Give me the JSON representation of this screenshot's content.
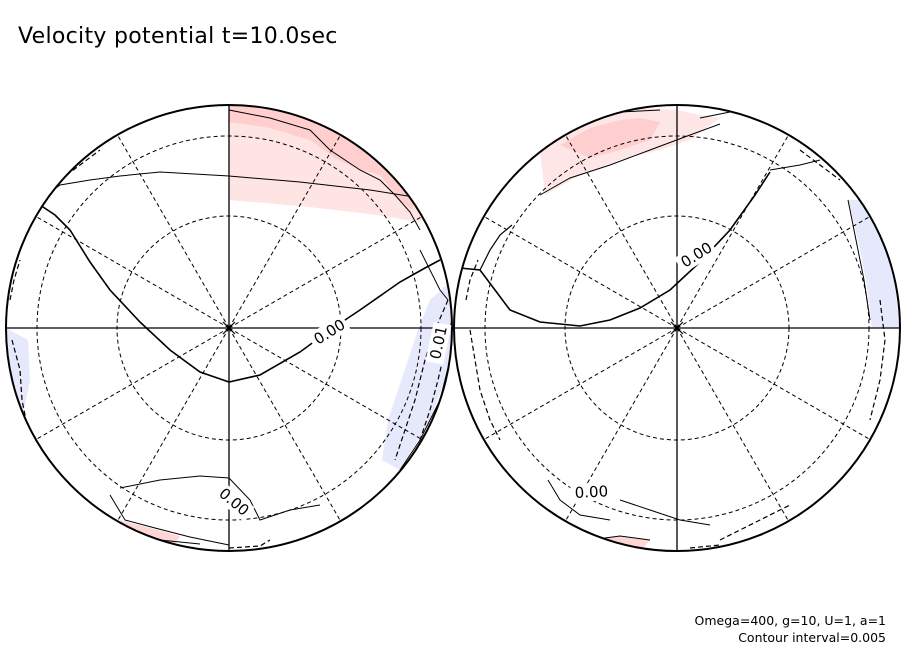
{
  "title": "Velocity potential t=10.0sec",
  "footer": {
    "params": "Omega=400, g=10, U=1, a=1",
    "contour": "Contour interval=0.005"
  },
  "contour_labels": {
    "left_center": "0.00",
    "left_south": "0.00",
    "left_edge": "0.01",
    "right_center": "0.00",
    "right_south": "0.00"
  },
  "colors": {
    "positive_fill": "#ffe4e4",
    "positive_strong": "#ffc8c8",
    "negative_fill": "#e6e8fc",
    "line": "#000000"
  }
}
